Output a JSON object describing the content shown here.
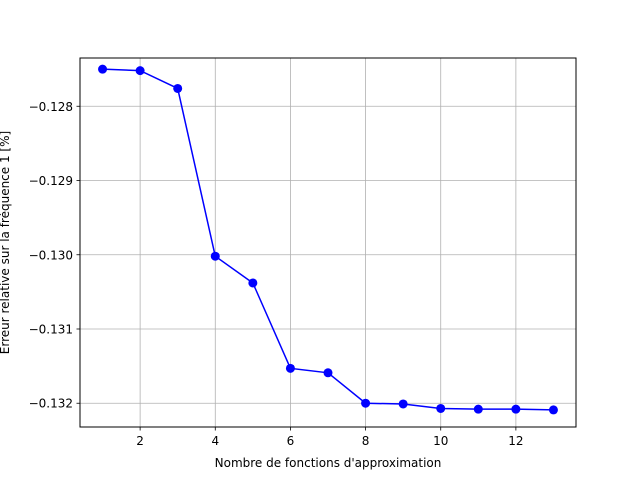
{
  "chart_data": {
    "type": "line",
    "title": "",
    "xlabel": "Nombre de fonctions d'approximation",
    "ylabel": "Erreur relative sur la fréquence 1 [%]",
    "xlim": [
      0.4,
      13.6
    ],
    "ylim": [
      -0.13232,
      -0.12735
    ],
    "xticks": [
      2,
      4,
      6,
      8,
      10,
      12
    ],
    "xtick_labels": [
      "2",
      "4",
      "6",
      "8",
      "10",
      "12"
    ],
    "yticks": [
      -0.128,
      -0.129,
      -0.13,
      -0.131,
      -0.132
    ],
    "ytick_labels": [
      "−0.128",
      "−0.129",
      "−0.130",
      "−0.131",
      "−0.132"
    ],
    "grid": true,
    "color": "#0000ff",
    "marker": "circle",
    "series": [
      {
        "x": [
          1,
          2,
          3,
          4,
          5,
          6,
          7,
          8,
          9,
          10,
          11,
          12,
          13
        ],
        "y": [
          -0.1275,
          -0.12752,
          -0.12776,
          -0.13002,
          -0.13038,
          -0.13153,
          -0.13159,
          -0.132,
          -0.13201,
          -0.13207,
          -0.13208,
          -0.13208,
          -0.13209
        ]
      }
    ]
  }
}
